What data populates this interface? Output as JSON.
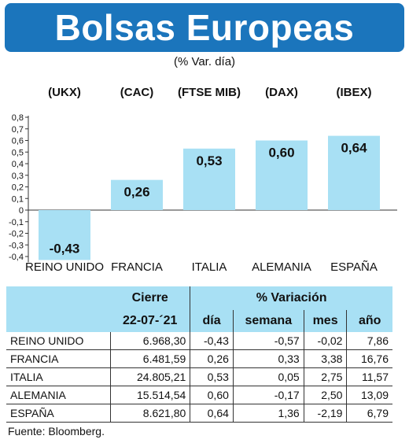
{
  "title": "Bolsas Europeas",
  "subtitle": "(% Var. día)",
  "chart_data": {
    "type": "bar",
    "categories": [
      "REINO UNIDO",
      "FRANCIA",
      "ITALIA",
      "ALEMANIA",
      "ESPAÑA"
    ],
    "index_codes": [
      "(UKX)",
      "(CAC)",
      "(FTSE MIB)",
      "(DAX)",
      "(IBEX)"
    ],
    "values": [
      -0.43,
      0.26,
      0.53,
      0.6,
      0.64
    ],
    "value_labels": [
      "-0,43",
      "0,26",
      "0,53",
      "0,60",
      "0,64"
    ],
    "ylim": [
      -0.45,
      0.8
    ],
    "yticks": [
      0.8,
      0.7,
      0.6,
      0.5,
      0.4,
      0.3,
      0.2,
      0.1,
      0,
      -0.1,
      -0.2,
      -0.3,
      -0.4
    ],
    "ytick_labels": [
      "0,8",
      "0,7",
      "0,6",
      "0,5",
      "0,4",
      "0,3",
      "0,2",
      "0,1",
      "0",
      "-0,1",
      "-0,2",
      "-0,3",
      "-0,4"
    ],
    "bar_color": "#a8e0f4",
    "grid": false,
    "xlabel": "",
    "ylabel": ""
  },
  "table": {
    "header_cierre": "Cierre",
    "header_variacion": "% Variación",
    "date": "22-07-´21",
    "columns": [
      "día",
      "semana",
      "mes",
      "año"
    ],
    "rows": [
      {
        "name": "REINO UNIDO",
        "cierre": "6.968,30",
        "dia": "-0,43",
        "semana": "-0,57",
        "mes": "-0,02",
        "ano": "7,86"
      },
      {
        "name": "FRANCIA",
        "cierre": "6.481,59",
        "dia": "0,26",
        "semana": "0,33",
        "mes": "3,38",
        "ano": "16,76"
      },
      {
        "name": "ITALIA",
        "cierre": "24.805,21",
        "dia": "0,53",
        "semana": "0,05",
        "mes": "2,75",
        "ano": "11,57"
      },
      {
        "name": "ALEMANIA",
        "cierre": "15.514,54",
        "dia": "0,60",
        "semana": "-0,17",
        "mes": "2,50",
        "ano": "13,09"
      },
      {
        "name": "ESPAÑA",
        "cierre": "8.621,80",
        "dia": "0,64",
        "semana": "1,36",
        "mes": "-2,19",
        "ano": "6,79"
      }
    ]
  },
  "source": "Fuente: Bloomberg."
}
